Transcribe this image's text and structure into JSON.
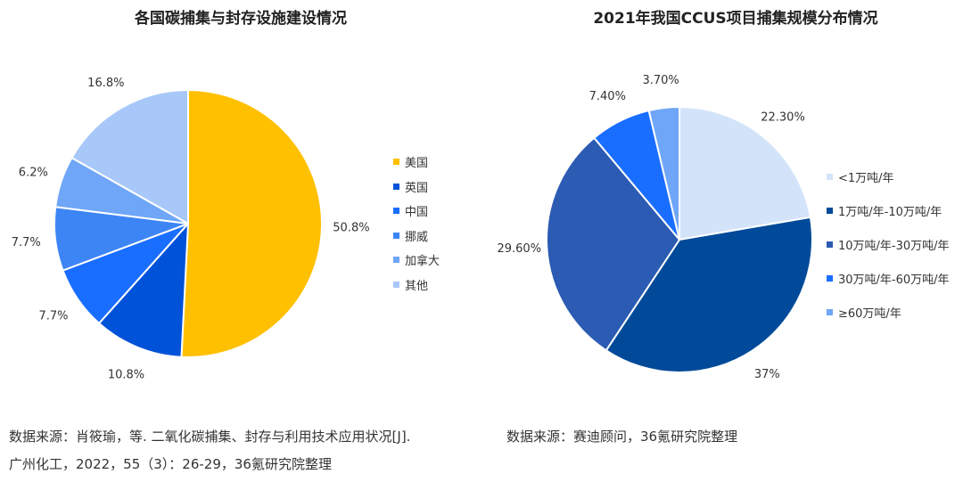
{
  "chart_data": [
    {
      "type": "pie",
      "title": "各国碳捕集与封存设施建设情况",
      "categories": [
        "美国",
        "英国",
        "中国",
        "挪威",
        "加拿大",
        "其他"
      ],
      "values": [
        50.8,
        10.8,
        7.7,
        7.7,
        6.2,
        16.8
      ],
      "labels": [
        "50.8%",
        "10.8%",
        "7.7%",
        "7.7%",
        "6.2%",
        "16.8%"
      ],
      "colors": [
        "#FFC000",
        "#0052D9",
        "#1A6EFF",
        "#3D85F5",
        "#6FA6F7",
        "#A8C8FA"
      ],
      "legend": "right",
      "start": "12 o'clock, clockwise"
    },
    {
      "type": "pie",
      "title": "2021年我国CCUS项目捕集规模分布情况",
      "categories": [
        "<1万吨/年",
        "1万吨/年-10万吨/年",
        "10万吨/年-30万吨/年",
        "30万吨/年-60万吨/年",
        "≥60万吨/年"
      ],
      "values": [
        22.3,
        37,
        29.6,
        7.4,
        3.7
      ],
      "labels": [
        "22.30%",
        "37%",
        "29.60%",
        "7.40%",
        "3.70%"
      ],
      "colors": [
        "#D3E4FA",
        "#004A99",
        "#2B5BB3",
        "#1A6EFF",
        "#6FA6F7"
      ],
      "legend": "right",
      "start": "12 o'clock, clockwise"
    }
  ],
  "sources": {
    "left_line1": "数据来源：肖筱瑜，等. 二氧化碳捕集、封存与利用技术应用状况[J].",
    "left_line2": "广州化工，2022，55（3）：26-29，36氪研究院整理",
    "right": "数据来源：赛迪顾问，36氪研究院整理"
  }
}
